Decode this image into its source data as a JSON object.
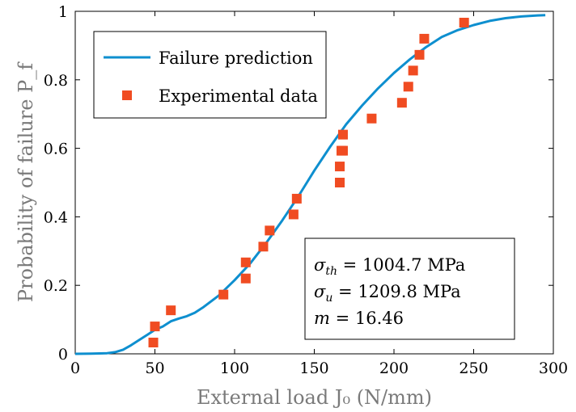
{
  "chart_data": {
    "type": "scatter",
    "title": "",
    "xlabel": "External load J₀ (N/mm)",
    "ylabel": "Probability of failure P_f",
    "xlim": [
      0,
      300
    ],
    "ylim": [
      0,
      1
    ],
    "x_ticks": [
      "0",
      "50",
      "100",
      "150",
      "200",
      "250",
      "300"
    ],
    "y_ticks": [
      "0",
      "0.2",
      "0.4",
      "0.6",
      "0.8",
      "1"
    ],
    "grid": false,
    "legend_position": "top-left",
    "series": [
      {
        "name": "Failure prediction",
        "type": "line",
        "color": "#0e8fcf",
        "x": [
          0,
          10,
          20,
          25,
          30,
          35,
          40,
          45,
          50,
          55,
          60,
          65,
          70,
          75,
          80,
          90,
          100,
          110,
          120,
          130,
          140,
          150,
          160,
          170,
          180,
          190,
          200,
          210,
          220,
          230,
          240,
          250,
          260,
          270,
          280,
          290,
          295
        ],
        "y": [
          0,
          0.0005,
          0.002,
          0.005,
          0.012,
          0.025,
          0.04,
          0.055,
          0.07,
          0.08,
          0.095,
          0.103,
          0.11,
          0.12,
          0.135,
          0.17,
          0.215,
          0.265,
          0.325,
          0.39,
          0.46,
          0.535,
          0.605,
          0.67,
          0.725,
          0.775,
          0.82,
          0.86,
          0.895,
          0.925,
          0.945,
          0.96,
          0.972,
          0.98,
          0.985,
          0.988,
          0.989
        ]
      },
      {
        "name": "Experimental data",
        "type": "scatter",
        "color": "#f04c22",
        "x": [
          49,
          50,
          60,
          93,
          107,
          107,
          118,
          122,
          137,
          139,
          166,
          166,
          167,
          168,
          168,
          186,
          205,
          209,
          212,
          216,
          219,
          244
        ],
        "y": [
          0.033,
          0.08,
          0.127,
          0.173,
          0.22,
          0.267,
          0.313,
          0.36,
          0.407,
          0.453,
          0.5,
          0.547,
          0.593,
          0.593,
          0.64,
          0.687,
          0.733,
          0.78,
          0.827,
          0.873,
          0.92,
          0.967
        ]
      }
    ],
    "annotation": [
      {
        "var": "σ",
        "sub": "th",
        "rest": " = 1004.7 MPa"
      },
      {
        "var": "σ",
        "sub": "u",
        "rest": " = 1209.8 MPa"
      },
      {
        "var": "m",
        "sub": "",
        "rest": " = 16.46"
      }
    ]
  }
}
